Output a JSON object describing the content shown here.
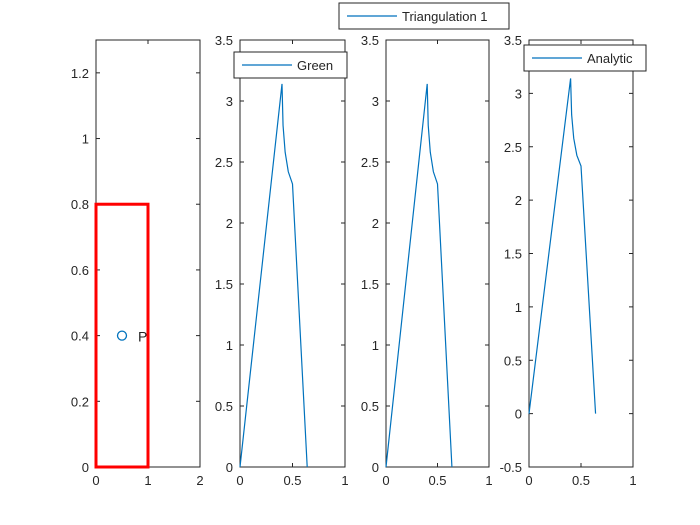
{
  "colors": {
    "line": "#0072bd",
    "rect": "#ff0000",
    "axes": "#262626",
    "legend_edge": "#262626"
  },
  "chart_data": [
    {
      "type": "scatter",
      "xlim": [
        0,
        2
      ],
      "ylim": [
        0,
        1.3
      ],
      "xticks": [
        0,
        1,
        2
      ],
      "xtick_labels": [
        "0",
        "1",
        "2"
      ],
      "yticks": [
        0,
        0.2,
        0.4,
        0.6,
        0.8,
        1,
        1.2
      ],
      "ytick_labels": [
        "0",
        "0.2",
        "0.4",
        "0.6",
        "0.8",
        "1",
        "1.2"
      ],
      "rectangle": {
        "x": 0,
        "y": 0,
        "width": 1,
        "height": 0.8
      },
      "points": [
        {
          "x": 0.5,
          "y": 0.4,
          "label": "P"
        }
      ],
      "grid": false
    },
    {
      "type": "line",
      "xlim": [
        0,
        1
      ],
      "ylim": [
        0,
        3.5
      ],
      "xticks": [
        0,
        0.5,
        1
      ],
      "xtick_labels": [
        "0",
        "0.5",
        "1"
      ],
      "yticks": [
        0,
        0.5,
        1,
        1.5,
        2,
        2.5,
        3,
        3.5
      ],
      "ytick_labels": [
        "0",
        "0.5",
        "1",
        "1.5",
        "2",
        "2.5",
        "3",
        "3.5"
      ],
      "series": [
        {
          "name": "Green",
          "x": [
            0,
            0.4,
            0.41,
            0.43,
            0.46,
            0.5,
            0.5,
            0.64
          ],
          "y": [
            0,
            3.14,
            2.8,
            2.58,
            2.42,
            2.32,
            2.32,
            0
          ]
        }
      ],
      "legend": "top-right",
      "grid": false
    },
    {
      "type": "line",
      "xlim": [
        0,
        1
      ],
      "ylim": [
        0,
        3.5
      ],
      "xticks": [
        0,
        0.5,
        1
      ],
      "xtick_labels": [
        "0",
        "0.5",
        "1"
      ],
      "yticks": [
        0,
        0.5,
        1,
        1.5,
        2,
        2.5,
        3,
        3.5
      ],
      "ytick_labels": [
        "0",
        "0.5",
        "1",
        "1.5",
        "2",
        "2.5",
        "3",
        "3.5"
      ],
      "series": [
        {
          "name": "Triangulation 1",
          "x": [
            0,
            0.4,
            0.41,
            0.43,
            0.46,
            0.5,
            0.5,
            0.64
          ],
          "y": [
            0,
            3.14,
            2.8,
            2.58,
            2.42,
            2.32,
            2.32,
            0
          ]
        }
      ],
      "legend": "top (outside)",
      "grid": false
    },
    {
      "type": "line",
      "xlim": [
        0,
        1
      ],
      "ylim": [
        -0.5,
        3.5
      ],
      "xticks": [
        0,
        0.5,
        1
      ],
      "xtick_labels": [
        "0",
        "0.5",
        "1"
      ],
      "yticks": [
        -0.5,
        0,
        0.5,
        1,
        1.5,
        2,
        2.5,
        3,
        3.5
      ],
      "ytick_labels": [
        "-0.5",
        "0",
        "0.5",
        "1",
        "1.5",
        "2",
        "2.5",
        "3",
        "3.5"
      ],
      "series": [
        {
          "name": "Analytic",
          "x": [
            0,
            0.4,
            0.41,
            0.43,
            0.46,
            0.5,
            0.5,
            0.64
          ],
          "y": [
            0,
            3.14,
            2.8,
            2.58,
            2.42,
            2.32,
            2.32,
            0
          ]
        }
      ],
      "legend": "top-right",
      "grid": false
    }
  ]
}
